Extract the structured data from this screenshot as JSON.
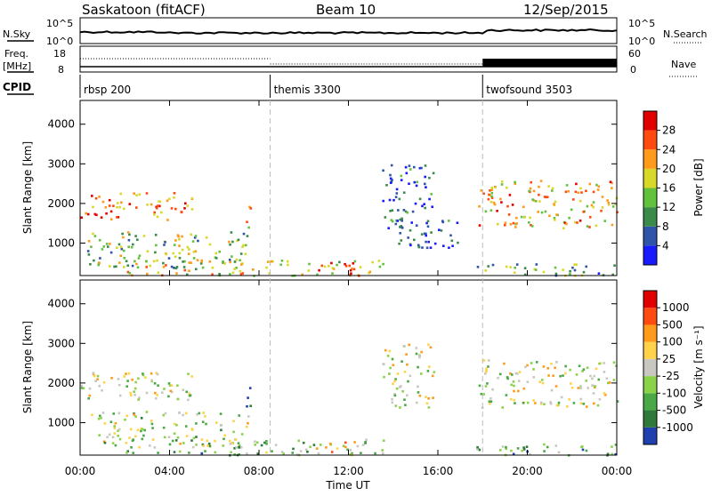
{
  "header": {
    "station": "Saskatoon (fitACF)",
    "beam": "Beam 10",
    "date": "12/Sep/2015"
  },
  "top_panel": {
    "nsky_label": "N.Sky",
    "nsearch_label": "N.Search",
    "left_ticks": [
      "10^5",
      "10^0"
    ],
    "right_ticks": [
      "10^5",
      "10^0"
    ],
    "freq_label_1": "Freq.",
    "freq_label_2": "[MHz]",
    "freq_ticks": [
      "18",
      "8"
    ],
    "nave_label": "Nave",
    "nave_ticks": [
      "60",
      "0"
    ],
    "cpid_label": "CPID",
    "cpid_segments": [
      {
        "label": "rbsp 200",
        "start_hour": 0.0
      },
      {
        "label": "themis 3300",
        "start_hour": 8.5
      },
      {
        "label": "twofsound 3503",
        "start_hour": 18.0
      }
    ]
  },
  "chart_data": [
    {
      "type": "heatmap",
      "name": "power",
      "ylabel": "Slant Range [km]",
      "y_ticks": [
        "1000",
        "2000",
        "3000",
        "4000"
      ],
      "ylim": [
        180,
        4600
      ],
      "colorbar_label": "Power [dB]",
      "colorbar_ticks": [
        "28",
        "24",
        "20",
        "16",
        "12",
        "8",
        "4"
      ],
      "colors": [
        "#1a1aff",
        "#2e55a8",
        "#3a8a4a",
        "#62c23e",
        "#d8d82a",
        "#ff9a1a",
        "#ff4a10",
        "#e00000"
      ],
      "echo_regions": [
        {
          "t0": 0.0,
          "t1": 5.0,
          "r0": 1600,
          "r1": 2300,
          "level": 0.75
        },
        {
          "t0": 0.3,
          "t1": 7.5,
          "r0": 400,
          "r1": 1300,
          "level": 0.45
        },
        {
          "t0": 7.4,
          "t1": 7.6,
          "r0": 1400,
          "r1": 2200,
          "level": 0.7
        },
        {
          "t0": 2.0,
          "t1": 13.8,
          "r0": 200,
          "r1": 600,
          "level": 0.55
        },
        {
          "t0": 10.5,
          "t1": 12.5,
          "r0": 250,
          "r1": 550,
          "level": 0.8
        },
        {
          "t0": 13.5,
          "t1": 15.8,
          "r0": 1400,
          "r1": 3000,
          "level": 0.2
        },
        {
          "t0": 14.0,
          "t1": 17.0,
          "r0": 900,
          "r1": 1600,
          "level": 0.15
        },
        {
          "t0": 17.8,
          "t1": 24.0,
          "r0": 1400,
          "r1": 2600,
          "level": 0.65
        },
        {
          "t0": 17.5,
          "t1": 24.0,
          "r0": 200,
          "r1": 500,
          "level": 0.35
        }
      ]
    },
    {
      "type": "heatmap",
      "name": "velocity",
      "ylabel": "Slant Range [km]",
      "y_ticks": [
        "1000",
        "2000",
        "3000",
        "4000"
      ],
      "ylim": [
        180,
        4600
      ],
      "colorbar_label": "Velocity [m s⁻¹]",
      "colorbar_ticks": [
        "1000",
        "500",
        "100",
        "25",
        "-25",
        "-100",
        "-500",
        "-1000"
      ],
      "colors": [
        "#2040b0",
        "#2f7a3a",
        "#4aa846",
        "#8ad24a",
        "#c8c8c0",
        "#ffd24a",
        "#ff9a1a",
        "#ff4a10",
        "#e00000"
      ],
      "echo_regions": [
        {
          "t0": 0.0,
          "t1": 5.0,
          "r0": 1600,
          "r1": 2300,
          "level": 0.5
        },
        {
          "t0": 0.3,
          "t1": 7.5,
          "r0": 400,
          "r1": 1300,
          "level": 0.45
        },
        {
          "t0": 7.4,
          "t1": 7.6,
          "r0": 1400,
          "r1": 2200,
          "level": 0.02
        },
        {
          "t0": 2.0,
          "t1": 13.8,
          "r0": 200,
          "r1": 600,
          "level": 0.35
        },
        {
          "t0": 10.5,
          "t1": 12.5,
          "r0": 250,
          "r1": 550,
          "level": 0.62
        },
        {
          "t0": 13.5,
          "t1": 15.8,
          "r0": 1400,
          "r1": 3000,
          "level": 0.5
        },
        {
          "t0": 17.8,
          "t1": 24.0,
          "r0": 1400,
          "r1": 2600,
          "level": 0.5
        },
        {
          "t0": 17.5,
          "t1": 24.0,
          "r0": 200,
          "r1": 500,
          "level": 0.3
        }
      ]
    }
  ],
  "x_axis": {
    "label": "Time UT",
    "ticks": [
      "00:00",
      "04:00",
      "08:00",
      "12:00",
      "16:00",
      "20:00",
      "00:00"
    ],
    "xlim": [
      0,
      24
    ]
  },
  "cpid_change_hours": [
    8.5,
    18.0
  ]
}
